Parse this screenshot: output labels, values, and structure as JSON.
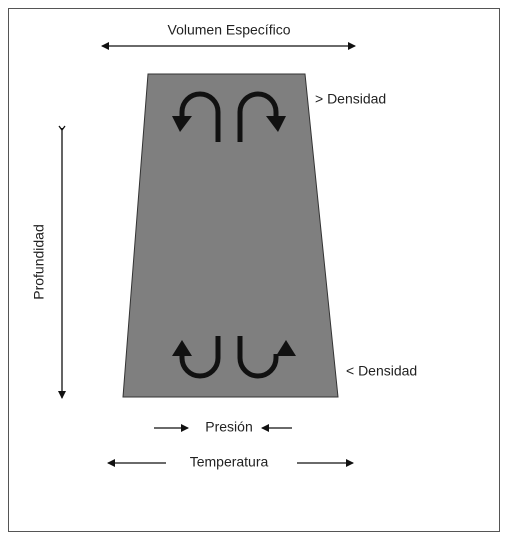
{
  "title": "Volumen Específico",
  "labels": {
    "top_density": "> Densidad",
    "bottom_density": "< Densidad",
    "depth": "Profundidad",
    "pressure": "Presión",
    "temperature": "Temperatura"
  }
}
